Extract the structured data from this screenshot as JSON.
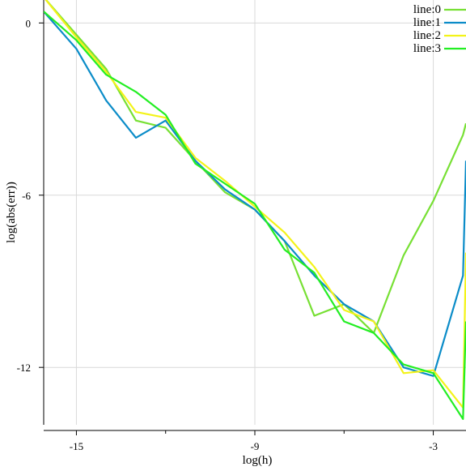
{
  "chart_data": {
    "type": "line",
    "title": "",
    "xlabel": "log(h)",
    "ylabel": "log(abs(err))",
    "xlim": [
      -16.1,
      -1.9
    ],
    "ylim": [
      -14.0,
      0.8
    ],
    "xticks": [
      -15,
      -9,
      -3
    ],
    "yticks": [
      0,
      -6,
      -12
    ],
    "xtick_labels": [
      "-15",
      "-9",
      "-3"
    ],
    "ytick_labels": [
      "0",
      "-6",
      "-12"
    ],
    "minor_xticks": [
      -12,
      -6
    ],
    "grid": true,
    "legend_position": "top-right",
    "series": [
      {
        "name": "line:0",
        "color": "#77e034",
        "x": [
          -16.1,
          -14.0,
          -13.0,
          -12.0,
          -11.0,
          -10.0,
          -9.0,
          -8.0,
          -7.0,
          -6.0,
          -5.0,
          -4.0,
          -3.0,
          -2.0,
          -1.9
        ],
        "y": [
          0.9,
          -1.6,
          -3.4,
          -3.65,
          -4.8,
          -5.9,
          -6.5,
          -7.6,
          -10.2,
          -9.8,
          -10.8,
          -8.1,
          -6.2,
          -3.9,
          -3.5
        ]
      },
      {
        "name": "line:1",
        "color": "#0b8cc8",
        "x": [
          -16.1,
          -15.0,
          -14.0,
          -13.0,
          -12.0,
          -11.0,
          -10.0,
          -9.0,
          -8.0,
          -7.0,
          -6.0,
          -5.0,
          -4.0,
          -3.0,
          -2.0,
          -1.9
        ],
        "y": [
          0.4,
          -0.9,
          -2.7,
          -4.0,
          -3.4,
          -4.8,
          -5.8,
          -6.5,
          -7.6,
          -8.8,
          -9.8,
          -10.4,
          -12.0,
          -12.3,
          -8.8,
          -4.8
        ]
      },
      {
        "name": "line:2",
        "color": "#f3f319",
        "x": [
          -16.1,
          -15.0,
          -14.0,
          -13.0,
          -12.0,
          -11.0,
          -10.0,
          -9.0,
          -8.0,
          -7.0,
          -6.0,
          -5.0,
          -4.0,
          -3.0,
          -2.0,
          -1.9
        ],
        "y": [
          0.9,
          -0.5,
          -1.7,
          -3.1,
          -3.3,
          -4.7,
          -5.5,
          -6.4,
          -7.3,
          -8.5,
          -10.0,
          -10.4,
          -12.2,
          -12.1,
          -13.4,
          -8.0
        ]
      },
      {
        "name": "line:3",
        "color": "#23ee23",
        "x": [
          -16.1,
          -15.0,
          -14.0,
          -13.0,
          -12.0,
          -11.0,
          -10.0,
          -9.0,
          -8.0,
          -7.0,
          -6.0,
          -5.0,
          -4.0,
          -3.0,
          -2.0,
          -1.9
        ],
        "y": [
          0.4,
          -0.6,
          -1.8,
          -2.4,
          -3.2,
          -4.9,
          -5.6,
          -6.3,
          -7.9,
          -8.7,
          -10.4,
          -10.8,
          -11.9,
          -12.2,
          -13.8,
          -10.4
        ]
      }
    ]
  }
}
